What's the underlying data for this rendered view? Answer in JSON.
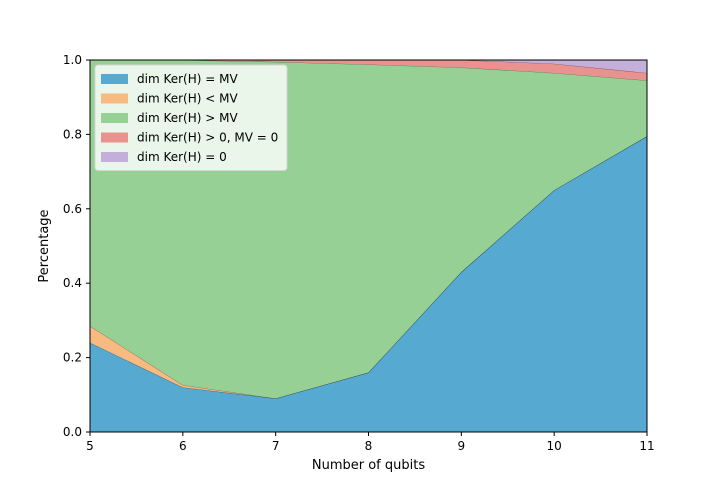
{
  "chart_data": {
    "type": "area",
    "stacked": true,
    "title": "",
    "xlabel": "Number of qubits",
    "ylabel": "Percentage",
    "x": [
      5,
      6,
      7,
      8,
      9,
      10,
      11
    ],
    "xlim": [
      5,
      11
    ],
    "ylim": [
      0,
      1
    ],
    "xticks": [
      "5",
      "6",
      "7",
      "8",
      "9",
      "10",
      "11"
    ],
    "yticks": [
      "0.0",
      "0.2",
      "0.4",
      "0.6",
      "0.8",
      "1.0"
    ],
    "grid": false,
    "legend_position": "top-left",
    "series": [
      {
        "name": "dim Ker(H) = MV",
        "color": "#56A9D1",
        "values": [
          0.24,
          0.12,
          0.09,
          0.16,
          0.43,
          0.65,
          0.795
        ]
      },
      {
        "name": "dim Ker(H) < MV",
        "color": "#F7BA81",
        "values": [
          0.045,
          0.006,
          0.0,
          0.0,
          0.0,
          0.0,
          0.0
        ]
      },
      {
        "name": "dim Ker(H) > MV",
        "color": "#96D095",
        "values": [
          0.715,
          0.874,
          0.905,
          0.828,
          0.55,
          0.315,
          0.15
        ]
      },
      {
        "name": "dim Ker(H) > 0, MV = 0",
        "color": "#E99390",
        "values": [
          0.0,
          0.0,
          0.005,
          0.012,
          0.02,
          0.025,
          0.02
        ]
      },
      {
        "name": "dim Ker(H) = 0",
        "color": "#C4AFDA",
        "values": [
          0.0,
          0.0,
          0.0,
          0.0,
          0.0,
          0.01,
          0.035
        ]
      }
    ]
  }
}
